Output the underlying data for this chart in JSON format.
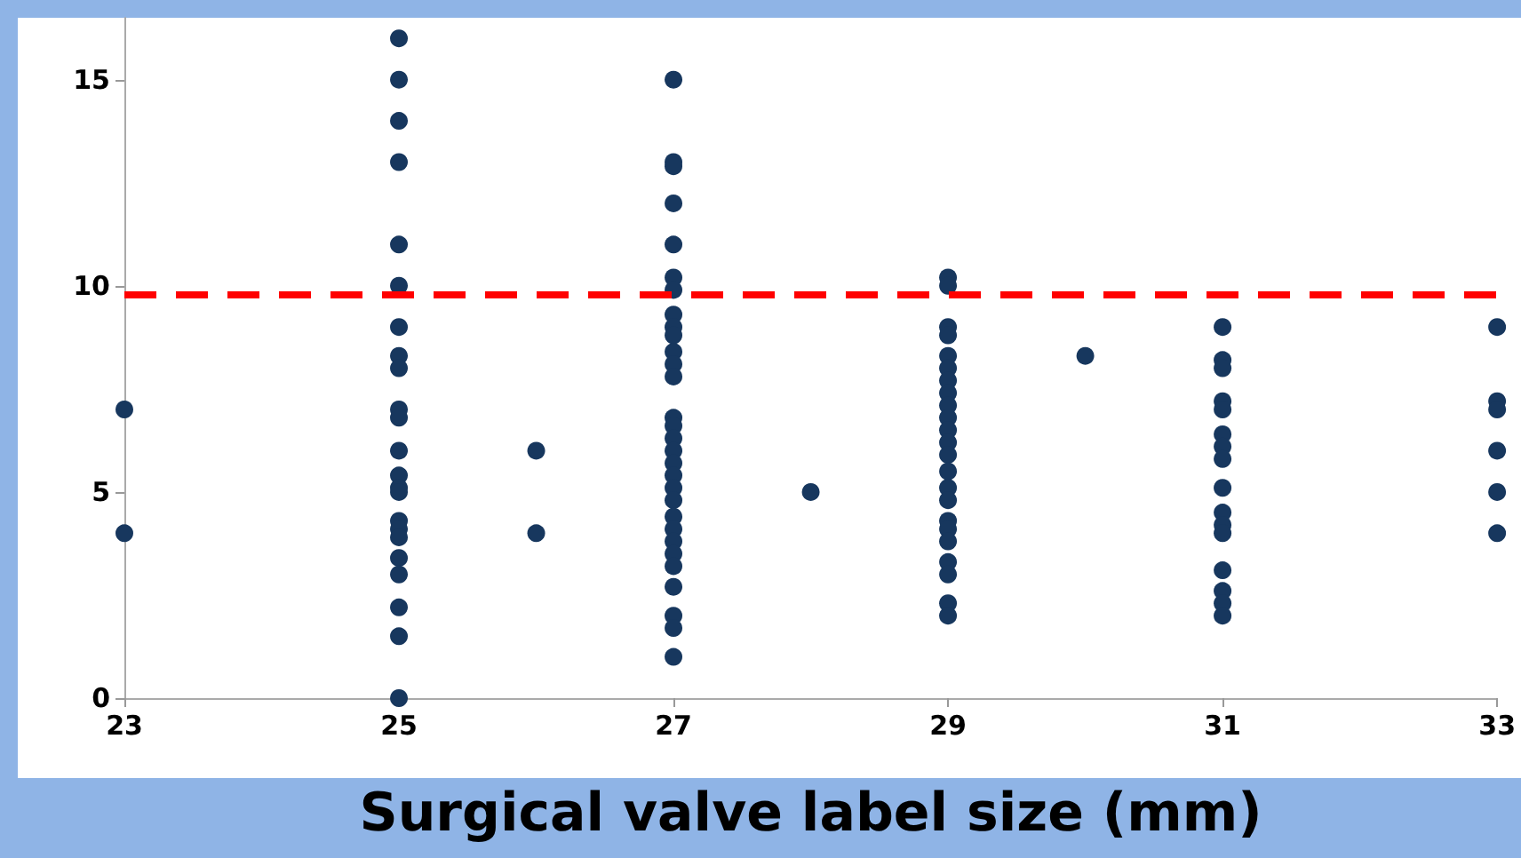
{
  "chart_data": {
    "type": "scatter",
    "xlabel": "Surgical valve label size (mm)",
    "series": [
      {
        "color": "#17375e",
        "x": [
          23,
          23,
          25,
          25,
          25,
          25,
          25,
          25,
          25,
          25,
          25,
          25,
          25,
          25,
          25,
          25,
          25,
          25,
          25,
          25,
          25,
          25,
          25,
          25,
          25,
          26,
          26,
          27,
          27,
          27,
          27,
          27,
          27,
          27,
          27,
          27,
          27,
          27,
          27,
          27,
          27,
          27,
          27,
          27,
          27,
          27,
          27,
          27,
          27,
          27,
          27,
          27,
          27,
          27,
          27,
          27,
          27,
          28,
          29,
          29,
          29,
          29,
          29,
          29,
          29,
          29,
          29,
          29,
          29,
          29,
          29,
          29,
          29,
          29,
          29,
          29,
          29,
          29,
          29,
          29,
          29,
          30,
          31,
          31,
          31,
          31,
          31,
          31,
          31,
          31,
          31,
          31,
          31,
          31,
          31,
          31,
          31,
          31,
          33,
          33,
          33,
          33,
          33,
          33
        ],
        "values": [
          7,
          4,
          16,
          15,
          14,
          13,
          11,
          10,
          9,
          8.3,
          8,
          7,
          6.8,
          6,
          5.4,
          5.1,
          5,
          4.3,
          4.1,
          3.9,
          3.4,
          3,
          2.2,
          1.5,
          0,
          6,
          4,
          15,
          13,
          12.9,
          12,
          11,
          10.2,
          9.9,
          9.3,
          9,
          8.8,
          8.4,
          8.1,
          7.8,
          6.8,
          6.6,
          6.3,
          6,
          5.7,
          5.4,
          5.1,
          4.8,
          4.4,
          4.1,
          3.8,
          3.5,
          3.2,
          2.7,
          2,
          1.7,
          1,
          5,
          10.2,
          10,
          9,
          8.8,
          8.3,
          8,
          7.7,
          7.4,
          7.1,
          6.8,
          6.5,
          6.2,
          5.9,
          5.5,
          5.1,
          4.8,
          4.3,
          4.1,
          3.8,
          3.3,
          3,
          2.3,
          2,
          8.3,
          9,
          8.2,
          8,
          7.2,
          7,
          6.4,
          6.1,
          5.8,
          5.1,
          4.5,
          4.2,
          4,
          3.1,
          2.6,
          2.3,
          2,
          9,
          7.2,
          7,
          6,
          5,
          4
        ]
      }
    ],
    "xlim": [
      23,
      33
    ],
    "xticks": [
      23,
      25,
      27,
      29,
      31,
      33
    ],
    "ylim": [
      0,
      16.5
    ],
    "yticks": [
      0,
      5,
      10,
      15
    ],
    "grid": false,
    "marker": "circle",
    "ref_lines": [
      {
        "axis": "y",
        "value": 9.8,
        "color": "#ff0000",
        "line_style": "dashed"
      }
    ]
  }
}
